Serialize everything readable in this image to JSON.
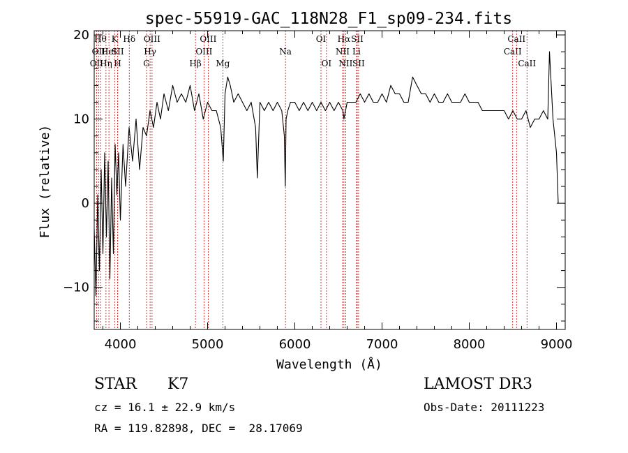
{
  "chart_data": {
    "type": "line",
    "title": "spec-55919-GAC_118N28_F1_sp09-234.fits",
    "xlabel": "Wavelength (Å)",
    "ylabel": "Flux (relative)",
    "xlim": [
      3700,
      9100
    ],
    "ylim": [
      -15,
      20.5
    ],
    "xticks": [
      4000,
      5000,
      6000,
      7000,
      8000,
      9000
    ],
    "yticks": [
      -10,
      0,
      10,
      20
    ],
    "series": [
      {
        "name": "flux",
        "x": [
          3700,
          3720,
          3740,
          3760,
          3780,
          3800,
          3820,
          3840,
          3860,
          3880,
          3900,
          3920,
          3940,
          3960,
          3980,
          4000,
          4030,
          4060,
          4100,
          4140,
          4180,
          4220,
          4260,
          4300,
          4340,
          4380,
          4420,
          4460,
          4500,
          4550,
          4600,
          4650,
          4700,
          4750,
          4800,
          4850,
          4900,
          4950,
          5000,
          5050,
          5100,
          5150,
          5180,
          5200,
          5230,
          5260,
          5300,
          5350,
          5400,
          5450,
          5500,
          5550,
          5570,
          5600,
          5650,
          5700,
          5750,
          5800,
          5850,
          5880,
          5890,
          5900,
          5920,
          5950,
          6000,
          6050,
          6100,
          6150,
          6200,
          6250,
          6300,
          6350,
          6400,
          6450,
          6500,
          6550,
          6563,
          6600,
          6650,
          6700,
          6750,
          6800,
          6850,
          6900,
          6950,
          7000,
          7050,
          7100,
          7150,
          7200,
          7250,
          7300,
          7350,
          7400,
          7450,
          7500,
          7550,
          7600,
          7650,
          7700,
          7750,
          7800,
          7850,
          7900,
          7950,
          8000,
          8050,
          8100,
          8150,
          8200,
          8250,
          8300,
          8350,
          8400,
          8450,
          8500,
          8550,
          8600,
          8650,
          8700,
          8750,
          8800,
          8850,
          8900,
          8920,
          8940,
          8960,
          8980,
          9000,
          9020
        ],
        "y": [
          -3,
          -11,
          1,
          -8,
          4,
          -6,
          6,
          -4,
          5,
          -9,
          3,
          -6,
          7,
          1,
          6,
          -2,
          7,
          2,
          9,
          5,
          10,
          4,
          9,
          8,
          11,
          9,
          12,
          10,
          13,
          11,
          14,
          12,
          13,
          12,
          14,
          11,
          13,
          10,
          12,
          11,
          11,
          9,
          5,
          13,
          15,
          14,
          12,
          13,
          12,
          11,
          12,
          9,
          3,
          12,
          11,
          12,
          11,
          12,
          11,
          8,
          2,
          10,
          11,
          12,
          12,
          11,
          12,
          11,
          12,
          11,
          12,
          11,
          12,
          11,
          12,
          11,
          10,
          12,
          12,
          12,
          13,
          12,
          13,
          12,
          12,
          13,
          12,
          14,
          13,
          13,
          12,
          12,
          15,
          14,
          13,
          13,
          12,
          13,
          12,
          12,
          13,
          12,
          12,
          12,
          13,
          12,
          12,
          12,
          11,
          11,
          11,
          11,
          11,
          11,
          10,
          11,
          10,
          10,
          11,
          9,
          10,
          10,
          11,
          10,
          18,
          14,
          10,
          8,
          6,
          0
        ]
      }
    ],
    "spectral_lines": [
      {
        "wl": 3727,
        "label": "OII",
        "row": 2
      },
      {
        "wl": 3750,
        "label": "OII",
        "row": 1
      },
      {
        "wl": 3771,
        "label": "Hθ",
        "row": 0
      },
      {
        "wl": 3835,
        "label": "Hη",
        "row": 2
      },
      {
        "wl": 3869,
        "label": "HeI",
        "row": 1
      },
      {
        "wl": 3934,
        "label": "K",
        "row": 0
      },
      {
        "wl": 3969,
        "label": "H",
        "row": 2
      },
      {
        "wl": 3970,
        "label": "SII",
        "row": 1
      },
      {
        "wl": 4102,
        "label": "Hδ",
        "row": 0
      },
      {
        "wl": 4300,
        "label": "G",
        "row": 2
      },
      {
        "wl": 4341,
        "label": "Hγ",
        "row": 1
      },
      {
        "wl": 4363,
        "label": "OIII",
        "row": 0
      },
      {
        "wl": 4861,
        "label": "Hβ",
        "row": 2
      },
      {
        "wl": 4959,
        "label": "OIII",
        "row": 1
      },
      {
        "wl": 5007,
        "label": "OIII",
        "row": 0
      },
      {
        "wl": 5175,
        "label": "Mg",
        "row": 2
      },
      {
        "wl": 5893,
        "label": "Na",
        "row": 1
      },
      {
        "wl": 6300,
        "label": "OI",
        "row": 0
      },
      {
        "wl": 6363,
        "label": "OI",
        "row": 2
      },
      {
        "wl": 6548,
        "label": "NII",
        "row": 1
      },
      {
        "wl": 6563,
        "label": "Hα",
        "row": 0
      },
      {
        "wl": 6583,
        "label": "NII",
        "row": 2
      },
      {
        "wl": 6707,
        "label": "Li",
        "row": 1
      },
      {
        "wl": 6716,
        "label": "SII",
        "row": 0
      },
      {
        "wl": 6731,
        "label": "SII",
        "row": 2
      },
      {
        "wl": 8498,
        "label": "CaII",
        "row": 1
      },
      {
        "wl": 8542,
        "label": "CaII",
        "row": 0
      },
      {
        "wl": 8662,
        "label": "CaII",
        "row": 2
      }
    ],
    "line_color": "#cc0000"
  },
  "info": {
    "class_label": "STAR",
    "subclass": "K7",
    "survey": "LAMOST DR3",
    "cz": "cz = 16.1 ± 22.9 km/s",
    "obs_date": "Obs-Date: 20111223",
    "radec": "RA = 119.82898, DEC =  28.17069"
  }
}
